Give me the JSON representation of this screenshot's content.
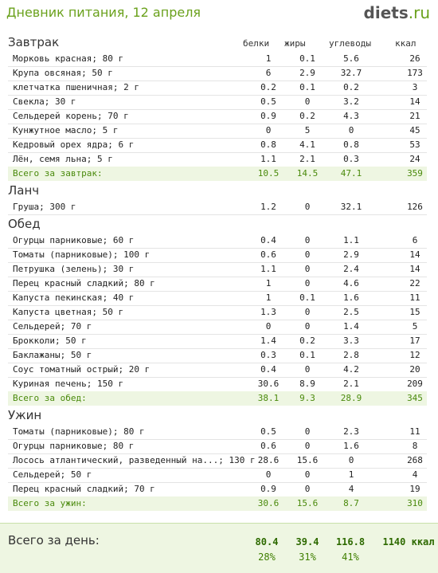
{
  "header": {
    "title": "Дневник питания, 12 апреля",
    "logo_main": "diets",
    "logo_tld": ".ru"
  },
  "columns": {
    "protein": "белки",
    "fat": "жиры",
    "carbs": "углеводы",
    "kcal": "ккал"
  },
  "sections": [
    {
      "title": "Завтрак",
      "items": [
        [
          "Морковь красная; 80 г",
          "1",
          "0.1",
          "5.6",
          "26"
        ],
        [
          "Крупа овсяная; 50 г",
          "6",
          "2.9",
          "32.7",
          "173"
        ],
        [
          "клетчатка пшеничная; 2 г",
          "0.2",
          "0.1",
          "0.2",
          "3"
        ],
        [
          "Свекла; 30 г",
          "0.5",
          "0",
          "3.2",
          "14"
        ],
        [
          "Сельдерей корень; 70 г",
          "0.9",
          "0.2",
          "4.3",
          "21"
        ],
        [
          "Кунжутное масло; 5 г",
          "0",
          "5",
          "0",
          "45"
        ],
        [
          "Кедровый орех ядра; 6 г",
          "0.8",
          "4.1",
          "0.8",
          "53"
        ],
        [
          "Лён, семя льна; 5 г",
          "1.1",
          "2.1",
          "0.3",
          "24"
        ]
      ],
      "total": [
        "Всего за завтрак:",
        "10.5",
        "14.5",
        "47.1",
        "359"
      ]
    },
    {
      "title": "Ланч",
      "items": [
        [
          "Груша; 300 г",
          "1.2",
          "0",
          "32.1",
          "126"
        ]
      ]
    },
    {
      "title": "Обед",
      "items": [
        [
          "Огурцы парниковые; 60 г",
          "0.4",
          "0",
          "1.1",
          "6"
        ],
        [
          "Томаты (парниковые); 100 г",
          "0.6",
          "0",
          "2.9",
          "14"
        ],
        [
          "Петрушка (зелень); 30 г",
          "1.1",
          "0",
          "2.4",
          "14"
        ],
        [
          "Перец красный сладкий; 80 г",
          "1",
          "0",
          "4.6",
          "22"
        ],
        [
          "Капуста пекинская; 40 г",
          "1",
          "0.1",
          "1.6",
          "11"
        ],
        [
          "Капуста цветная; 50 г",
          "1.3",
          "0",
          "2.5",
          "15"
        ],
        [
          "Сельдерей; 70 г",
          "0",
          "0",
          "1.4",
          "5"
        ],
        [
          "Брокколи; 50 г",
          "1.4",
          "0.2",
          "3.3",
          "17"
        ],
        [
          "Баклажаны; 50 г",
          "0.3",
          "0.1",
          "2.8",
          "12"
        ],
        [
          "Соус томатный острый; 20 г",
          "0.4",
          "0",
          "4.2",
          "20"
        ],
        [
          "Куриная печень; 150 г",
          "30.6",
          "8.9",
          "2.1",
          "209"
        ]
      ],
      "total": [
        "Всего за обед:",
        "38.1",
        "9.3",
        "28.9",
        "345"
      ]
    },
    {
      "title": "Ужин",
      "items": [
        [
          "Томаты (парниковые); 80 г",
          "0.5",
          "0",
          "2.3",
          "11"
        ],
        [
          "Огурцы парниковые; 80 г",
          "0.6",
          "0",
          "1.6",
          "8"
        ],
        [
          "Лосось атлантический, разведенный на...; 130 г",
          "28.6",
          "15.6",
          "0",
          "268"
        ],
        [
          "Сельдерей; 50 г",
          "0",
          "0",
          "1",
          "4"
        ],
        [
          "Перец красный сладкий; 70 г",
          "0.9",
          "0",
          "4",
          "19"
        ]
      ],
      "total": [
        "Всего за ужин:",
        "30.6",
        "15.6",
        "8.7",
        "310"
      ]
    }
  ],
  "day_total": {
    "label": "Всего за день:",
    "protein": "80.4",
    "fat": "39.4",
    "carbs": "116.8",
    "kcal": "1140 ккал",
    "protein_pct": "28%",
    "fat_pct": "31%",
    "carbs_pct": "41%"
  }
}
